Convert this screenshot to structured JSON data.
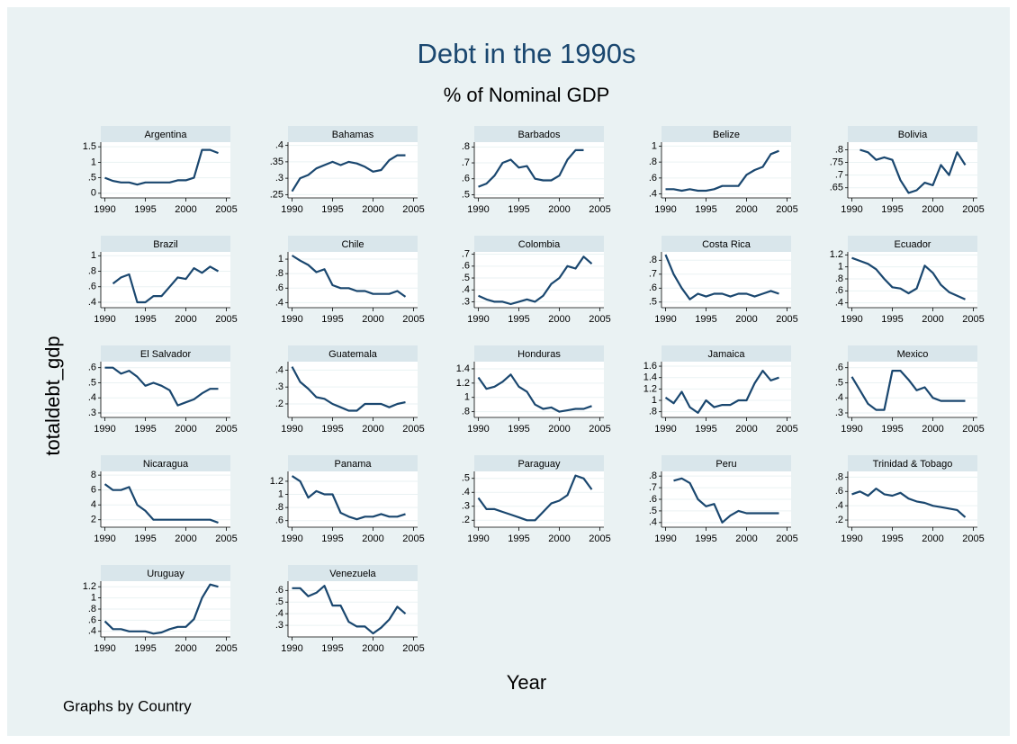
{
  "chart_data": {
    "type": "line",
    "title": "Debt in the 1990s",
    "subtitle": "% of Nominal GDP",
    "x_label": "Year",
    "y_label": "totaldebt_gdp",
    "note": "Graphs by Country",
    "color": "#1a476f",
    "grid": true,
    "x": [
      1990,
      1991,
      1992,
      1993,
      1994,
      1995,
      1996,
      1997,
      1998,
      1999,
      2000,
      2001,
      2002,
      2003,
      2004
    ],
    "xlim": [
      1989.5,
      2005.5
    ],
    "xticks": [
      1990,
      1995,
      2000,
      2005
    ],
    "panels": [
      {
        "title": "Argentina",
        "ylim": [
          -0.15,
          1.65
        ],
        "yticks": [
          0,
          {
            "value": 0.5,
            "label": ".5"
          },
          1,
          1.5
        ],
        "values": [
          0.5,
          0.4,
          0.35,
          0.35,
          0.28,
          0.35,
          0.35,
          0.35,
          0.35,
          0.42,
          0.42,
          0.5,
          1.4,
          1.4,
          1.3
        ]
      },
      {
        "title": "Bahamas",
        "ylim": [
          0.24,
          0.41
        ],
        "yticks": [
          {
            "value": 0.25,
            "label": ".25"
          },
          {
            "value": 0.3,
            "label": ".3"
          },
          {
            "value": 0.35,
            "label": ".35"
          },
          {
            "value": 0.4,
            "label": ".4"
          }
        ],
        "values": [
          0.26,
          0.3,
          0.31,
          0.33,
          0.34,
          0.35,
          0.34,
          0.35,
          0.345,
          0.335,
          0.32,
          0.325,
          0.355,
          0.37,
          0.37
        ]
      },
      {
        "title": "Barbados",
        "ylim": [
          0.48,
          0.83
        ],
        "yticks": [
          {
            "value": 0.5,
            "label": ".5"
          },
          {
            "value": 0.6,
            "label": ".6"
          },
          {
            "value": 0.7,
            "label": ".7"
          },
          {
            "value": 0.8,
            "label": ".8"
          }
        ],
        "values": [
          0.55,
          0.57,
          0.62,
          0.7,
          0.72,
          0.67,
          0.68,
          0.6,
          0.59,
          0.59,
          0.62,
          0.72,
          0.78,
          0.78,
          null
        ]
      },
      {
        "title": "Belize",
        "ylim": [
          0.35,
          1.05
        ],
        "yticks": [
          {
            "value": 0.4,
            "label": ".4"
          },
          {
            "value": 0.6,
            "label": ".6"
          },
          {
            "value": 0.8,
            "label": ".8"
          },
          1
        ],
        "values": [
          0.46,
          0.46,
          0.44,
          0.46,
          0.44,
          0.44,
          0.46,
          0.5,
          0.5,
          0.5,
          0.64,
          0.7,
          0.74,
          0.9,
          0.94
        ]
      },
      {
        "title": "Bolivia",
        "ylim": [
          0.61,
          0.83
        ],
        "yticks": [
          {
            "value": 0.65,
            "label": ".65"
          },
          {
            "value": 0.7,
            "label": ".7"
          },
          {
            "value": 0.75,
            "label": ".75"
          },
          {
            "value": 0.8,
            "label": ".8"
          }
        ],
        "values": [
          null,
          0.8,
          0.79,
          0.76,
          0.77,
          0.76,
          0.68,
          0.63,
          0.64,
          0.67,
          0.66,
          0.74,
          0.7,
          0.79,
          0.74
        ]
      },
      {
        "title": "Brazil",
        "ylim": [
          0.33,
          1.05
        ],
        "yticks": [
          {
            "value": 0.4,
            "label": ".4"
          },
          {
            "value": 0.6,
            "label": ".6"
          },
          {
            "value": 0.8,
            "label": ".8"
          },
          1
        ],
        "values": [
          null,
          0.64,
          0.72,
          0.76,
          0.4,
          0.4,
          0.48,
          0.48,
          0.6,
          0.72,
          0.7,
          0.84,
          0.78,
          0.86,
          0.8
        ]
      },
      {
        "title": "Chile",
        "ylim": [
          0.33,
          1.1
        ],
        "yticks": [
          {
            "value": 0.4,
            "label": ".4"
          },
          {
            "value": 0.6,
            "label": ".6"
          },
          {
            "value": 0.8,
            "label": ".8"
          },
          1
        ],
        "values": [
          1.05,
          0.98,
          0.92,
          0.82,
          0.86,
          0.64,
          0.6,
          0.6,
          0.56,
          0.56,
          0.52,
          0.52,
          0.52,
          0.56,
          0.48
        ]
      },
      {
        "title": "Colombia",
        "ylim": [
          0.25,
          0.72
        ],
        "yticks": [
          {
            "value": 0.3,
            "label": ".3"
          },
          {
            "value": 0.4,
            "label": ".4"
          },
          {
            "value": 0.5,
            "label": ".5"
          },
          {
            "value": 0.6,
            "label": ".6"
          },
          {
            "value": 0.7,
            "label": ".7"
          }
        ],
        "values": [
          0.35,
          0.32,
          0.3,
          0.3,
          0.28,
          0.3,
          0.32,
          0.3,
          0.35,
          0.45,
          0.5,
          0.6,
          0.58,
          0.68,
          0.62
        ]
      },
      {
        "title": "Costa Rica",
        "ylim": [
          0.46,
          0.86
        ],
        "yticks": [
          {
            "value": 0.5,
            "label": ".5"
          },
          {
            "value": 0.6,
            "label": ".6"
          },
          {
            "value": 0.7,
            "label": ".7"
          },
          {
            "value": 0.8,
            "label": ".8"
          }
        ],
        "values": [
          0.84,
          0.7,
          0.6,
          0.52,
          0.56,
          0.54,
          0.56,
          0.56,
          0.54,
          0.56,
          0.56,
          0.54,
          0.56,
          0.58,
          0.56
        ]
      },
      {
        "title": "Ecuador",
        "ylim": [
          0.32,
          1.25
        ],
        "yticks": [
          {
            "value": 0.4,
            "label": ".4"
          },
          {
            "value": 0.6,
            "label": ".6"
          },
          {
            "value": 0.8,
            "label": ".8"
          },
          1,
          1.2
        ],
        "values": [
          1.15,
          1.1,
          1.05,
          0.96,
          0.8,
          0.66,
          0.64,
          0.56,
          0.64,
          1.02,
          0.9,
          0.7,
          0.58,
          0.52,
          0.46
        ]
      },
      {
        "title": "El Salvador",
        "ylim": [
          0.27,
          0.64
        ],
        "yticks": [
          {
            "value": 0.3,
            "label": ".3"
          },
          {
            "value": 0.4,
            "label": ".4"
          },
          {
            "value": 0.5,
            "label": ".5"
          },
          {
            "value": 0.6,
            "label": ".6"
          }
        ],
        "values": [
          0.6,
          0.6,
          0.56,
          0.58,
          0.54,
          0.48,
          0.5,
          0.48,
          0.45,
          0.35,
          0.37,
          0.39,
          0.43,
          0.46,
          0.46
        ]
      },
      {
        "title": "Guatemala",
        "ylim": [
          0.12,
          0.45
        ],
        "yticks": [
          {
            "value": 0.2,
            "label": ".2"
          },
          {
            "value": 0.3,
            "label": ".3"
          },
          {
            "value": 0.4,
            "label": ".4"
          }
        ],
        "values": [
          0.42,
          0.33,
          0.29,
          0.24,
          0.23,
          0.2,
          0.18,
          0.16,
          0.16,
          0.2,
          0.2,
          0.2,
          0.18,
          0.2,
          0.21
        ]
      },
      {
        "title": "Honduras",
        "ylim": [
          0.72,
          1.5
        ],
        "yticks": [
          {
            "value": 0.8,
            "label": ".8"
          },
          1,
          1.2,
          1.4
        ],
        "values": [
          1.28,
          1.12,
          1.15,
          1.22,
          1.32,
          1.15,
          1.08,
          0.9,
          0.84,
          0.86,
          0.8,
          0.82,
          0.84,
          0.84,
          0.88
        ]
      },
      {
        "title": "Jamaica",
        "ylim": [
          0.7,
          1.68
        ],
        "yticks": [
          {
            "value": 0.8,
            "label": ".8"
          },
          1,
          1.2,
          1.4,
          1.6
        ],
        "values": [
          1.05,
          0.95,
          1.15,
          0.88,
          0.78,
          1,
          0.88,
          0.92,
          0.92,
          1,
          1,
          1.3,
          1.52,
          1.35,
          1.4
        ]
      },
      {
        "title": "Mexico",
        "ylim": [
          0.27,
          0.64
        ],
        "yticks": [
          {
            "value": 0.3,
            "label": ".3"
          },
          {
            "value": 0.4,
            "label": ".4"
          },
          {
            "value": 0.5,
            "label": ".5"
          },
          {
            "value": 0.6,
            "label": ".6"
          }
        ],
        "values": [
          0.54,
          0.45,
          0.36,
          0.32,
          0.32,
          0.58,
          0.58,
          0.52,
          0.45,
          0.47,
          0.4,
          0.38,
          0.38,
          0.38,
          0.38
        ]
      },
      {
        "title": "Nicaragua",
        "ylim": [
          1,
          8.5
        ],
        "yticks": [
          2,
          4,
          6,
          8
        ],
        "values": [
          6.8,
          6,
          6,
          6.4,
          4,
          3.2,
          2,
          2,
          2,
          2,
          2,
          2,
          2,
          2,
          1.6
        ]
      },
      {
        "title": "Panama",
        "ylim": [
          0.5,
          1.35
        ],
        "yticks": [
          {
            "value": 0.6,
            "label": ".6"
          },
          {
            "value": 0.8,
            "label": ".8"
          },
          1,
          1.2
        ],
        "values": [
          1.28,
          1.2,
          0.95,
          1.05,
          1,
          1,
          0.72,
          0.66,
          0.62,
          0.66,
          0.66,
          0.7,
          0.66,
          0.66,
          0.7
        ]
      },
      {
        "title": "Paraguay",
        "ylim": [
          0.15,
          0.55
        ],
        "yticks": [
          {
            "value": 0.2,
            "label": ".2"
          },
          {
            "value": 0.3,
            "label": ".3"
          },
          {
            "value": 0.4,
            "label": ".4"
          },
          {
            "value": 0.5,
            "label": ".5"
          }
        ],
        "values": [
          0.36,
          0.28,
          0.28,
          0.26,
          0.24,
          0.22,
          0.2,
          0.2,
          0.26,
          0.32,
          0.34,
          0.38,
          0.52,
          0.5,
          0.42
        ]
      },
      {
        "title": "Peru",
        "ylim": [
          0.36,
          0.84
        ],
        "yticks": [
          {
            "value": 0.4,
            "label": ".4"
          },
          {
            "value": 0.5,
            "label": ".5"
          },
          {
            "value": 0.6,
            "label": ".6"
          },
          {
            "value": 0.7,
            "label": ".7"
          },
          {
            "value": 0.8,
            "label": ".8"
          }
        ],
        "values": [
          null,
          0.76,
          0.78,
          0.74,
          0.6,
          0.54,
          0.56,
          0.4,
          0.46,
          0.5,
          0.48,
          0.48,
          0.48,
          0.48,
          0.48
        ]
      },
      {
        "title": "Trinidad & Tobago",
        "ylim": [
          0.1,
          0.88
        ],
        "yticks": [
          {
            "value": 0.2,
            "label": ".2"
          },
          {
            "value": 0.4,
            "label": ".4"
          },
          {
            "value": 0.6,
            "label": ".6"
          },
          {
            "value": 0.8,
            "label": ".8"
          }
        ],
        "values": [
          0.56,
          0.6,
          0.54,
          0.64,
          0.56,
          0.54,
          0.58,
          0.5,
          0.46,
          0.44,
          0.4,
          0.38,
          0.36,
          0.34,
          0.24
        ]
      },
      {
        "title": "Uruguay",
        "ylim": [
          0.3,
          1.3
        ],
        "yticks": [
          {
            "value": 0.4,
            "label": ".4"
          },
          {
            "value": 0.6,
            "label": ".6"
          },
          {
            "value": 0.8,
            "label": ".8"
          },
          1,
          1.2
        ],
        "values": [
          0.58,
          0.44,
          0.44,
          0.4,
          0.4,
          0.4,
          0.36,
          0.38,
          0.44,
          0.48,
          0.48,
          0.62,
          1,
          1.24,
          1.2
        ]
      },
      {
        "title": "Venezuela",
        "ylim": [
          0.2,
          0.68
        ],
        "yticks": [
          {
            "value": 0.3,
            "label": ".3"
          },
          {
            "value": 0.4,
            "label": ".4"
          },
          {
            "value": 0.5,
            "label": ".5"
          },
          {
            "value": 0.6,
            "label": ".6"
          }
        ],
        "values": [
          0.62,
          0.62,
          0.55,
          0.58,
          0.64,
          0.47,
          0.47,
          0.33,
          0.29,
          0.29,
          0.23,
          0.28,
          0.35,
          0.46,
          0.4
        ]
      }
    ]
  }
}
